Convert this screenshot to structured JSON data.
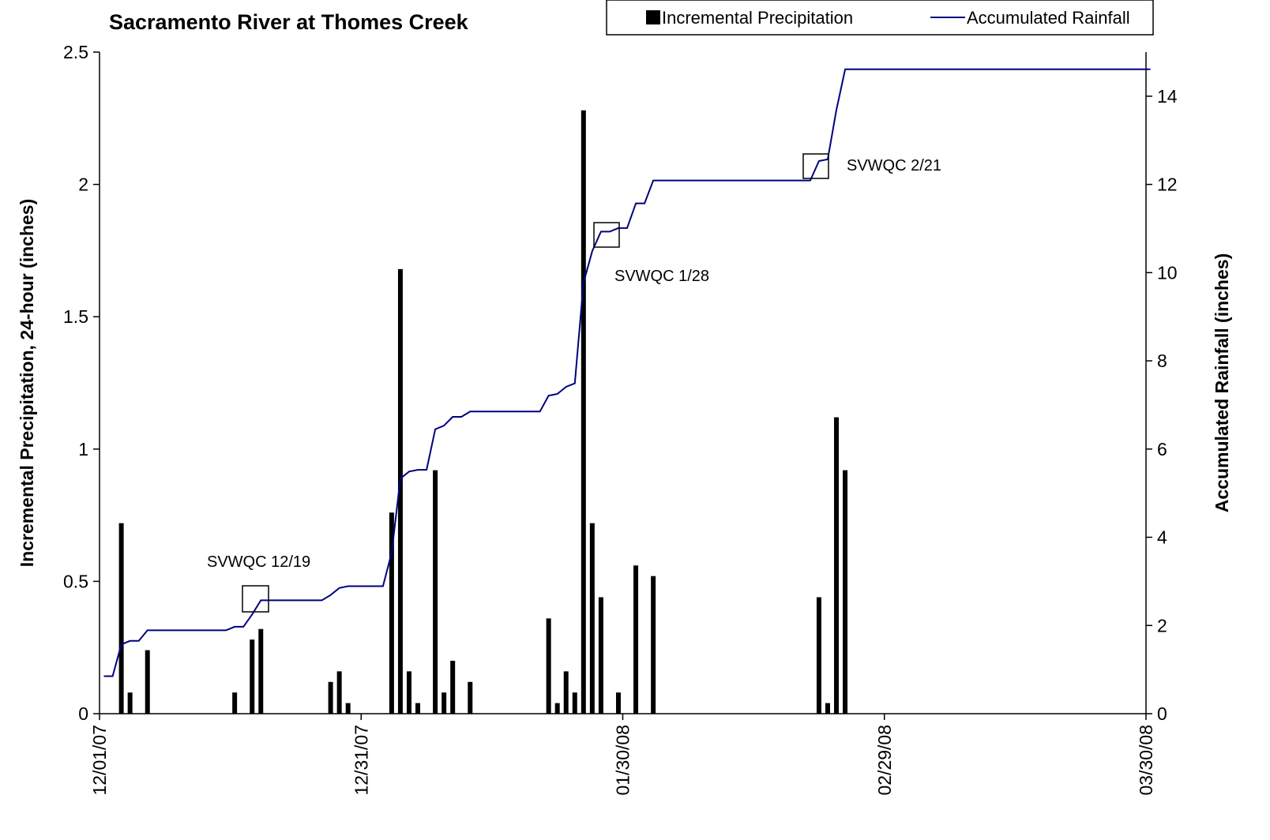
{
  "chart_data": {
    "type": "combo",
    "title": "Sacramento River at Thomes Creek",
    "ylabel": "Incremental Precipitation, 24-hour (inches)",
    "y2label": "Accumulated Rainfall (inches)",
    "xlim": [
      "12/01/07",
      "03/30/08"
    ],
    "xticks": [
      "12/01/07",
      "12/31/07",
      "01/30/08",
      "02/29/08",
      "03/30/08"
    ],
    "ylim": [
      0,
      2.5
    ],
    "yticks": [
      0,
      0.5,
      1,
      1.5,
      2,
      2.5
    ],
    "y2lim": [
      0,
      15
    ],
    "y2ticks": [
      0,
      2,
      4,
      6,
      8,
      10,
      12,
      14
    ],
    "legend": "top-right",
    "annotations": [
      "SVWQC 12/19",
      "SVWQC 1/28",
      "SVWQC 2/21"
    ],
    "series": [
      {
        "name": "Incremental Precipitation",
        "type": "bar",
        "color": "#000000",
        "x": [
          "12/03/07",
          "12/04/07",
          "12/06/07",
          "12/16/07",
          "12/18/07",
          "12/19/07",
          "12/27/07",
          "12/28/07",
          "12/29/07",
          "01/03/08",
          "01/04/08",
          "01/05/08",
          "01/06/08",
          "01/08/08",
          "01/09/08",
          "01/10/08",
          "01/12/08",
          "01/21/08",
          "01/22/08",
          "01/23/08",
          "01/24/08",
          "01/25/08",
          "01/26/08",
          "01/27/08",
          "01/29/08",
          "01/31/08",
          "02/02/08",
          "02/21/08",
          "02/22/08",
          "02/23/08",
          "02/24/08"
        ],
        "values": [
          0.72,
          0.08,
          0.24,
          0.08,
          0.28,
          0.32,
          0.12,
          0.16,
          0.04,
          0.76,
          1.68,
          0.16,
          0.04,
          0.92,
          0.08,
          0.2,
          0.12,
          0.36,
          0.04,
          0.16,
          0.08,
          2.28,
          0.72,
          0.44,
          0.08,
          0.56,
          0.52,
          0.44,
          0.04,
          1.12,
          0.92
        ]
      },
      {
        "name": "Accumulated Rainfall",
        "type": "line",
        "axis": "y2",
        "color": "#000080",
        "x": [
          "12/01/07",
          "12/02/07",
          "12/03/07",
          "12/04/07",
          "12/05/07",
          "12/06/07",
          "12/15/07",
          "12/16/07",
          "12/17/07",
          "12/18/07",
          "12/19/07",
          "12/26/07",
          "12/27/07",
          "12/28/07",
          "12/29/07",
          "01/02/08",
          "01/03/08",
          "01/04/08",
          "01/05/08",
          "01/06/08",
          "01/07/08",
          "01/08/08",
          "01/09/08",
          "01/10/08",
          "01/11/08",
          "01/12/08",
          "01/20/08",
          "01/21/08",
          "01/22/08",
          "01/23/08",
          "01/24/08",
          "01/25/08",
          "01/26/08",
          "01/27/08",
          "01/28/08",
          "01/29/08",
          "01/30/08",
          "01/31/08",
          "02/01/08",
          "02/02/08",
          "02/20/08",
          "02/21/08",
          "02/22/08",
          "02/23/08",
          "02/24/08",
          "03/30/08"
        ],
        "values": [
          0.85,
          0.85,
          1.57,
          1.65,
          1.65,
          1.89,
          1.89,
          1.97,
          1.97,
          2.25,
          2.57,
          2.57,
          2.69,
          2.85,
          2.89,
          2.89,
          3.65,
          5.33,
          5.49,
          5.53,
          5.53,
          6.45,
          6.53,
          6.73,
          6.73,
          6.85,
          6.85,
          7.21,
          7.25,
          7.41,
          7.49,
          9.77,
          10.49,
          10.93,
          10.93,
          11.01,
          11.01,
          11.57,
          11.57,
          12.09,
          12.09,
          12.53,
          12.57,
          13.69,
          14.61,
          14.61
        ]
      }
    ]
  }
}
